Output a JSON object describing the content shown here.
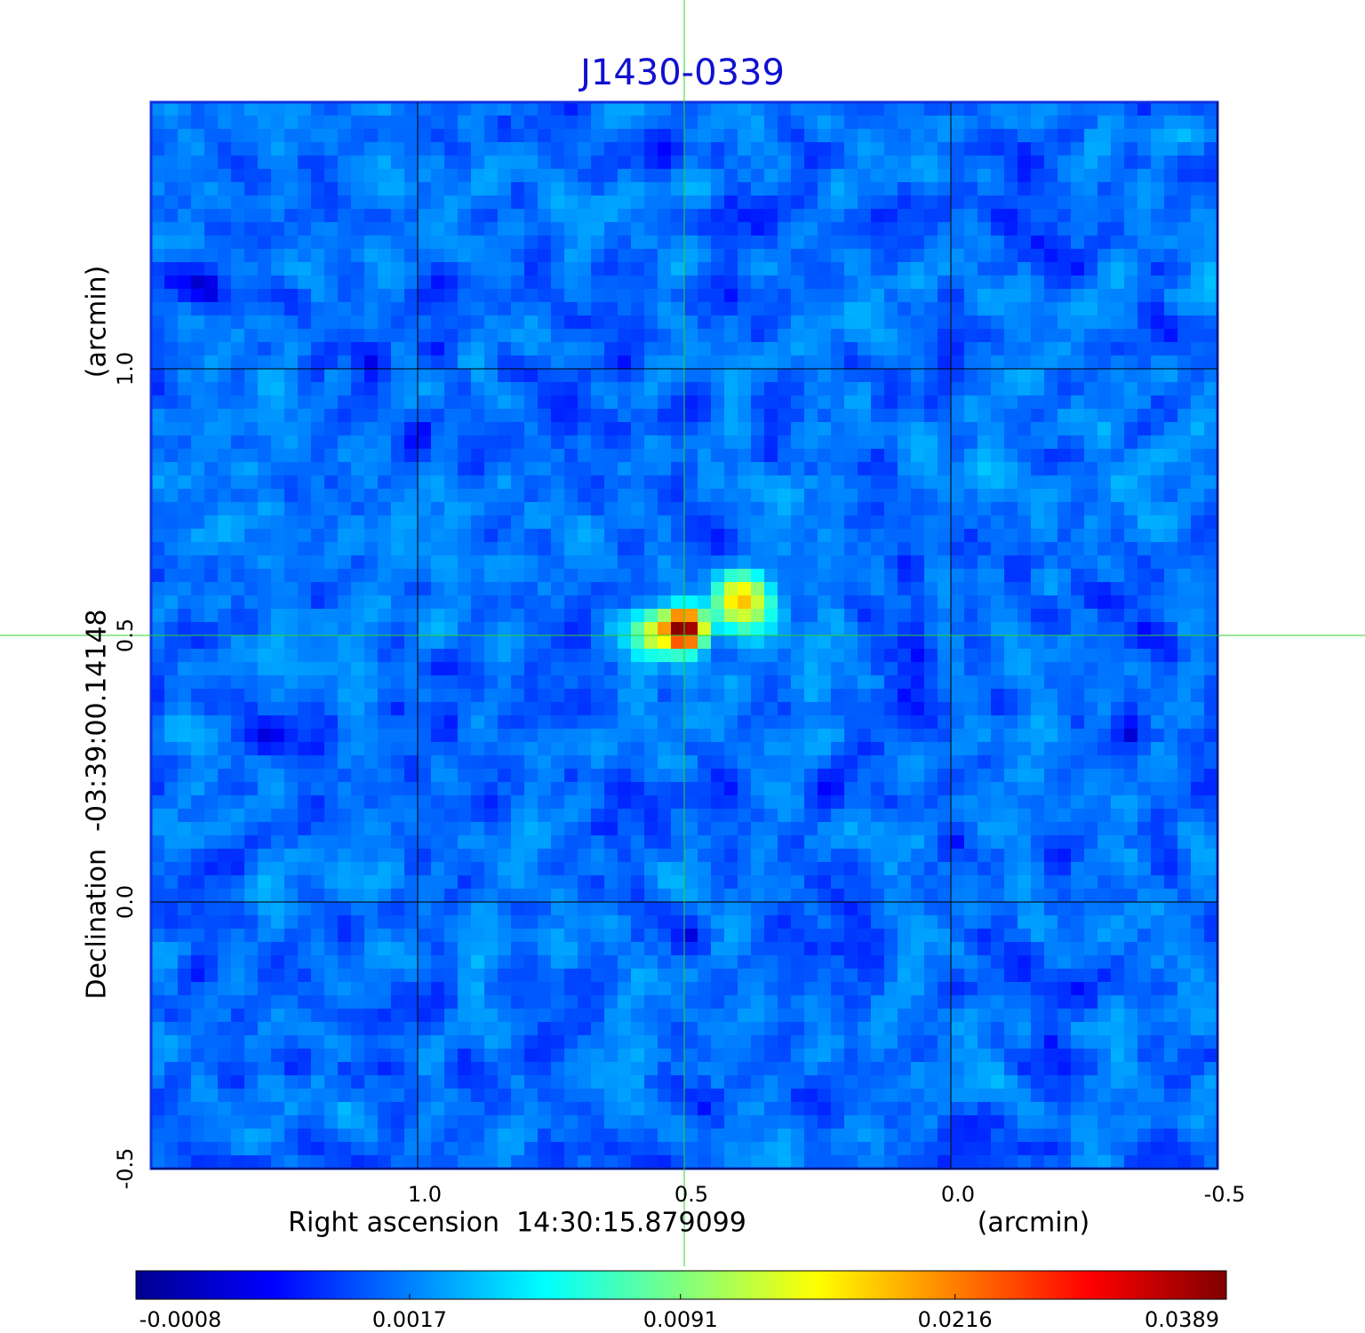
{
  "chart_data": {
    "type": "image",
    "title": "J1430-0339",
    "xlabel": "Right ascension  14:30:15.879099",
    "xunit": "(arcmin)",
    "ylabel": "Declination  -03:39:00.14148",
    "yunit": "(arcmin)",
    "xlim": [
      1.5,
      -0.5
    ],
    "ylim": [
      -0.5,
      1.5
    ],
    "xticks": [
      {
        "value": 1,
        "label": "1.0"
      },
      0.5,
      {
        "value": 0,
        "label": "0.0"
      },
      -0.5
    ],
    "yticks": [
      -0.5,
      {
        "value": 0,
        "label": "0.0"
      },
      0.5,
      {
        "value": 1,
        "label": "1.0"
      }
    ],
    "grid": true,
    "crosshair": [
      0.5,
      0.5
    ],
    "colorbar": {
      "lim": [
        -0.0008,
        0.0389
      ],
      "scale": "sqrt",
      "ticks": [
        -0.0008,
        0.0017,
        0.0091,
        0.0216,
        0.0389
      ]
    }
  }
}
